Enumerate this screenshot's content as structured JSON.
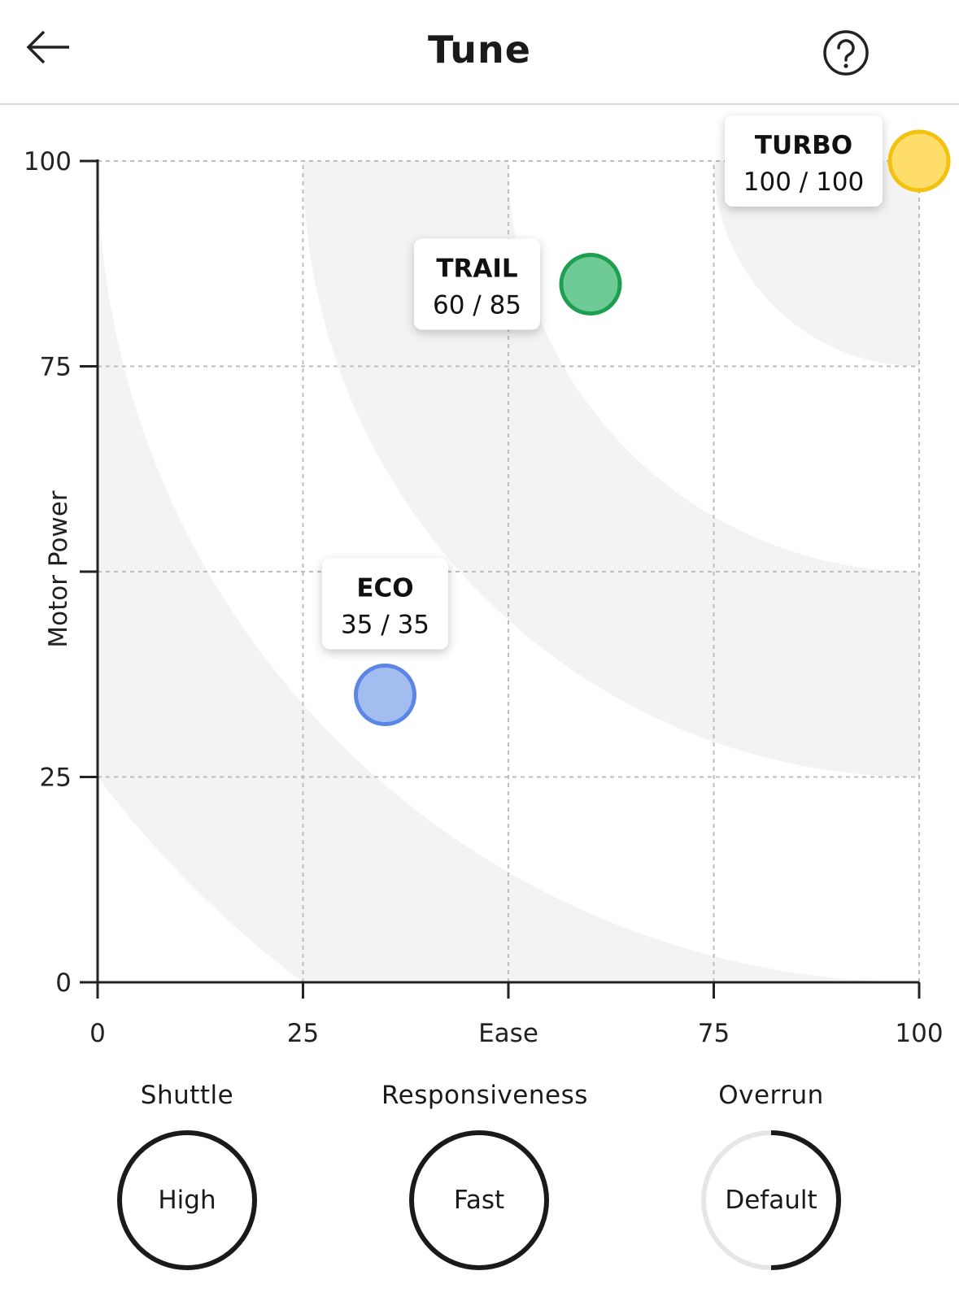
{
  "header": {
    "title": "Tune",
    "back_icon": "arrow-left-icon",
    "help_icon": "question-circle-icon"
  },
  "chart_data": {
    "type": "scatter",
    "xlabel": "Ease",
    "ylabel": "Motor Power",
    "xlim": [
      0,
      100
    ],
    "ylim": [
      0,
      100
    ],
    "x_ticks": [
      {
        "value": 0,
        "label": "0"
      },
      {
        "value": 25,
        "label": "25"
      },
      {
        "value": 50,
        "label": "Ease"
      },
      {
        "value": 75,
        "label": "75"
      },
      {
        "value": 100,
        "label": "100"
      }
    ],
    "y_ticks": [
      {
        "value": 0,
        "label": "0"
      },
      {
        "value": 25,
        "label": "25"
      },
      {
        "value": 50,
        "label": ""
      },
      {
        "value": 75,
        "label": "75"
      },
      {
        "value": 100,
        "label": "100"
      }
    ],
    "grid": true,
    "points": [
      {
        "name": "ECO",
        "x": 35,
        "y": 35,
        "value_label": "35 / 35",
        "fill": "#a4bdf0",
        "stroke": "#5b86e5"
      },
      {
        "name": "TRAIL",
        "x": 60,
        "y": 85,
        "value_label": "60 / 85",
        "fill": "#6fcb95",
        "stroke": "#1e9e50"
      },
      {
        "name": "TURBO",
        "x": 100,
        "y": 100,
        "value_label": "100 / 100",
        "fill": "#ffdd6b",
        "stroke": "#f2c20f"
      }
    ]
  },
  "settings": [
    {
      "title": "Shuttle",
      "value": "High",
      "fill_fraction": 1.0
    },
    {
      "title": "Responsiveness",
      "value": "Fast",
      "fill_fraction": 1.0
    },
    {
      "title": "Overrun",
      "value": "Default",
      "fill_fraction": 0.5
    }
  ],
  "colors": {
    "band": "#f3f3f3",
    "grid": "#bdbdbd",
    "axis": "#222222",
    "dial_ring": "#1a1a1a",
    "dial_track": "#e6e6e6"
  }
}
